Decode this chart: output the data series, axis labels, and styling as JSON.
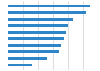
{
  "values": [
    218,
    208,
    172,
    161,
    155,
    149,
    142,
    136,
    105,
    65
  ],
  "bar_color": "#2e86c8",
  "background_color": "#ffffff",
  "grid_color": "#d0d0d0",
  "xlim": [
    0,
    240
  ],
  "num_bars": 10
}
